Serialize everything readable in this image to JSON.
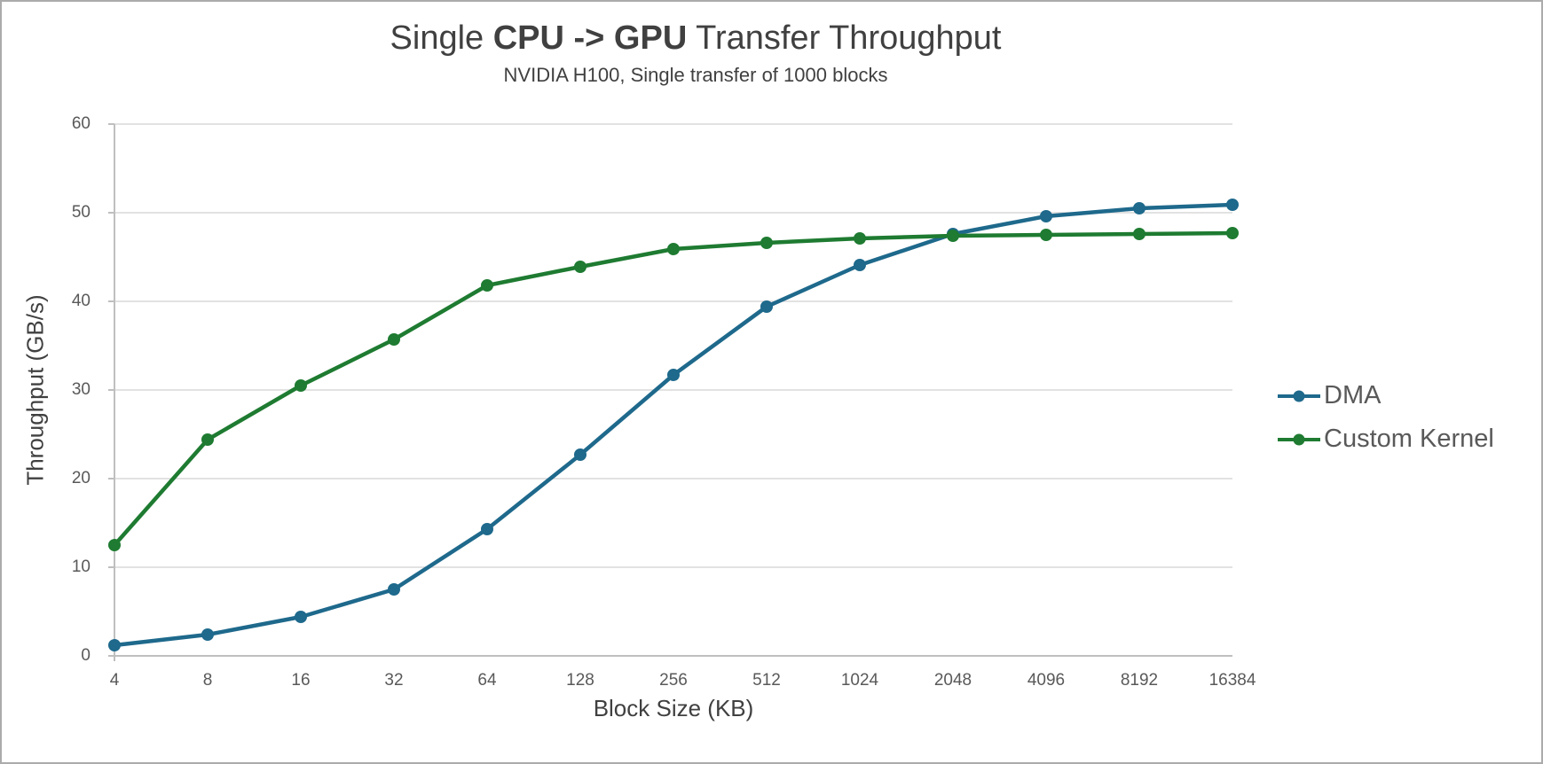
{
  "chart": {
    "title": {
      "prefix": "Single ",
      "bold": "CPU -> GPU",
      "suffix": " Transfer Throughput"
    },
    "subtitle": "NVIDIA H100, Single transfer of 1000 blocks",
    "x_axis_title": "Block Size (KB)",
    "y_axis_title": "Throughput (GB/s)"
  },
  "chart_data": {
    "type": "line",
    "title": "Single CPU -> GPU Transfer Throughput",
    "subtitle": "NVIDIA H100, Single transfer of 1000 blocks",
    "xlabel": "Block Size (KB)",
    "ylabel": "Throughput (GB/s)",
    "categories": [
      "4",
      "8",
      "16",
      "32",
      "64",
      "128",
      "256",
      "512",
      "1024",
      "2048",
      "4096",
      "8192",
      "16384"
    ],
    "series": [
      {
        "name": "DMA",
        "color": "#1E698C",
        "values": [
          1.2,
          2.4,
          4.4,
          7.5,
          14.3,
          22.7,
          31.7,
          39.4,
          44.1,
          47.6,
          49.6,
          50.5,
          50.9
        ]
      },
      {
        "name": "Custom Kernel",
        "color": "#1E7B31",
        "values": [
          12.5,
          24.4,
          30.5,
          35.7,
          41.8,
          43.9,
          45.9,
          46.6,
          47.1,
          47.4,
          47.5,
          47.6,
          47.7
        ]
      }
    ],
    "ylim": [
      0,
      60
    ],
    "y_ticks": [
      0,
      10,
      20,
      30,
      40,
      50,
      60
    ],
    "grid": "horizontal gridlines every 10",
    "legend_position": "right",
    "x_scale_note": "categorical axis, block size doubling each step"
  },
  "colors": {
    "gridline": "#D9D9D9",
    "axis_line": "#BFBFBF",
    "tick_text": "#595959",
    "title_text": "#404040",
    "frame_border": "#ABABAB",
    "background": "#FFFFFF"
  }
}
